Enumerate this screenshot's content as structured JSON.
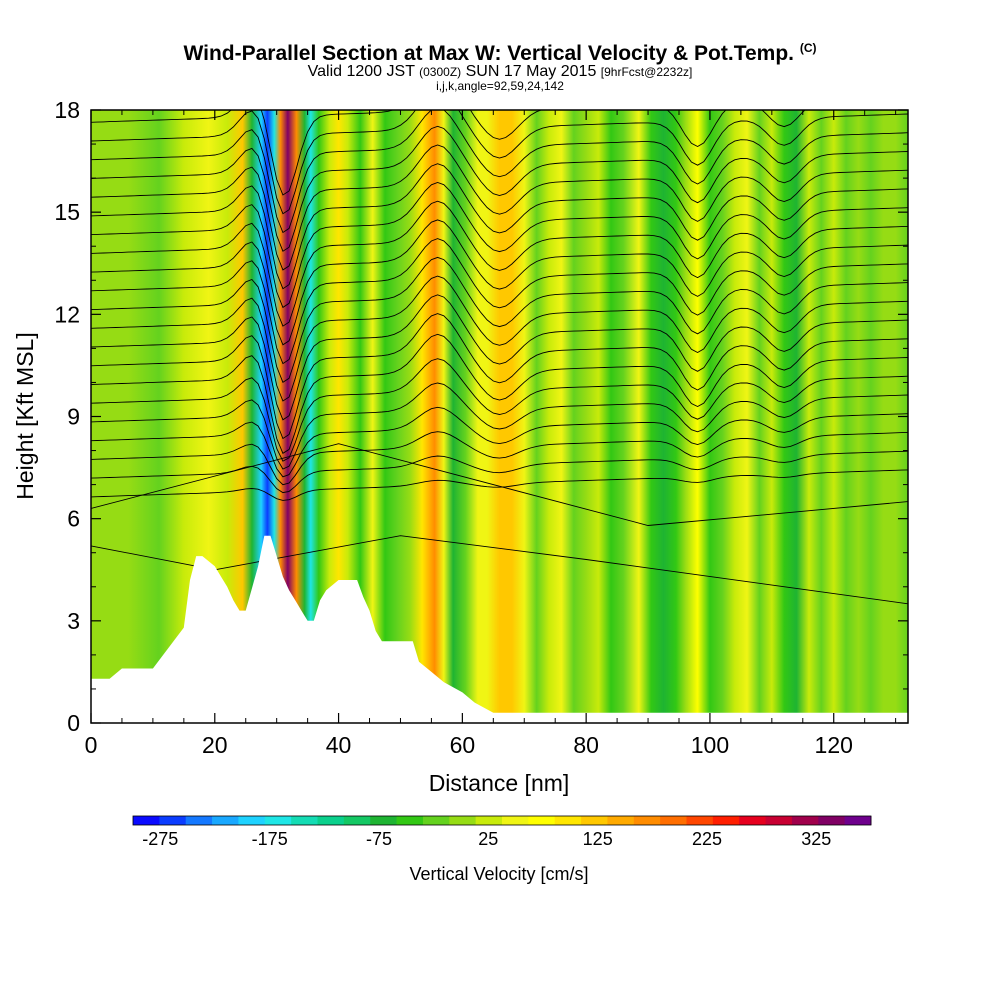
{
  "header": {
    "title": "Wind-Parallel Section at Max W: Vertical Velocity & Pot.Temp.",
    "copyright": "(C)",
    "valid_a": "Valid 1200 JST",
    "valid_z": "(0300Z)",
    "valid_b": "SUN 17 May 2015",
    "forecast": "[9hrFcst@2232z]",
    "indices": "i,j,k,angle=92,59,24,142"
  },
  "chart_data": {
    "type": "heatmap",
    "title": "Wind-Parallel Section at Max W: Vertical Velocity & Pot.Temp.",
    "xlabel": "Distance [nm]",
    "ylabel": "Height [Kft MSL]",
    "xlim": [
      0,
      132
    ],
    "ylim": [
      0,
      18
    ],
    "x_ticks": [
      0,
      20,
      40,
      60,
      80,
      100,
      120
    ],
    "y_ticks": [
      0,
      3,
      6,
      9,
      12,
      15,
      18
    ],
    "colorbar": {
      "label": "Vertical Velocity [cm/s]",
      "range": [
        -300,
        375
      ],
      "tick_values": [
        -275,
        -175,
        -75,
        25,
        125,
        225,
        325
      ],
      "tick_labels": [
        "-275",
        "-175",
        "-75",
        "25",
        "125",
        "225",
        "325"
      ],
      "colors": [
        "#0a0aff",
        "#0a3cff",
        "#1478ff",
        "#19a8ff",
        "#1ed2ff",
        "#1ee6e6",
        "#14dcb4",
        "#0ad08c",
        "#14c864",
        "#1eb432",
        "#32c814",
        "#64d21e",
        "#96dc14",
        "#c8eb0a",
        "#f0f514",
        "#ffff00",
        "#ffe600",
        "#ffc800",
        "#ffaa00",
        "#ff8c00",
        "#ff6e00",
        "#ff4600",
        "#ff1e00",
        "#e6001e",
        "#c80032",
        "#a0004b",
        "#800064",
        "#6e008c"
      ]
    },
    "terrain_profile": {
      "x": [
        0,
        3,
        5,
        10,
        15,
        16,
        17,
        18,
        20,
        21,
        22,
        23,
        24,
        25,
        27,
        28,
        29,
        30,
        31,
        32,
        33,
        34,
        35,
        36,
        37,
        38,
        40,
        43,
        44,
        45,
        46,
        47,
        50,
        52,
        53,
        55,
        57,
        60,
        62,
        65,
        70,
        80,
        90,
        100,
        110,
        120,
        132
      ],
      "height": [
        1.3,
        1.3,
        1.6,
        1.6,
        2.8,
        4.2,
        4.9,
        4.9,
        4.6,
        4.3,
        4.0,
        3.6,
        3.3,
        3.3,
        4.6,
        5.5,
        5.5,
        4.9,
        4.3,
        3.9,
        3.6,
        3.3,
        3.0,
        3.0,
        3.6,
        3.9,
        4.2,
        4.2,
        3.7,
        3.3,
        2.7,
        2.4,
        2.4,
        2.4,
        1.8,
        1.5,
        1.2,
        0.9,
        0.6,
        0.3,
        0.3,
        0.3,
        0.3,
        0.3,
        0.3,
        0.3,
        0.3
      ]
    },
    "vertical_velocity_columns": [
      {
        "x": 2,
        "w": 10
      },
      {
        "x": 6,
        "w": 0
      },
      {
        "x": 11,
        "w": -20
      },
      {
        "x": 15,
        "w": 20
      },
      {
        "x": 19,
        "w": 60
      },
      {
        "x": 22,
        "w": 35
      },
      {
        "x": 24.5,
        "w": 130
      },
      {
        "x": 26,
        "w": -60
      },
      {
        "x": 27.5,
        "w": -200
      },
      {
        "x": 28.5,
        "w": -275
      },
      {
        "x": 29.6,
        "w": -160
      },
      {
        "x": 30.6,
        "w": 160
      },
      {
        "x": 31.8,
        "w": 330
      },
      {
        "x": 33.2,
        "w": 180
      },
      {
        "x": 34.5,
        "w": -60
      },
      {
        "x": 35.5,
        "w": -175
      },
      {
        "x": 36.8,
        "w": -50
      },
      {
        "x": 38.5,
        "w": 30
      },
      {
        "x": 40,
        "w": 90
      },
      {
        "x": 41.5,
        "w": 20
      },
      {
        "x": 43.5,
        "w": -50
      },
      {
        "x": 45.5,
        "w": 40
      },
      {
        "x": 47.5,
        "w": -40
      },
      {
        "x": 49.5,
        "w": -20
      },
      {
        "x": 51.5,
        "w": 10
      },
      {
        "x": 53.5,
        "w": 90
      },
      {
        "x": 55.5,
        "w": 160
      },
      {
        "x": 57,
        "w": 60
      },
      {
        "x": 58.5,
        "w": -60
      },
      {
        "x": 60.5,
        "w": -25
      },
      {
        "x": 62.5,
        "w": 40
      },
      {
        "x": 64,
        "w": 40
      },
      {
        "x": 66,
        "w": 110
      },
      {
        "x": 68,
        "w": 130
      },
      {
        "x": 70,
        "w": 40
      },
      {
        "x": 72,
        "w": -30
      },
      {
        "x": 74,
        "w": 20
      },
      {
        "x": 76,
        "w": 40
      },
      {
        "x": 78,
        "w": -20
      },
      {
        "x": 80,
        "w": 10
      },
      {
        "x": 82,
        "w": 30
      },
      {
        "x": 84,
        "w": -50
      },
      {
        "x": 86,
        "w": -20
      },
      {
        "x": 88.5,
        "w": 40
      },
      {
        "x": 90.5,
        "w": -40
      },
      {
        "x": 92.5,
        "w": -70
      },
      {
        "x": 94.5,
        "w": -40
      },
      {
        "x": 96,
        "w": 0
      },
      {
        "x": 98,
        "w": 70
      },
      {
        "x": 100,
        "w": -40
      },
      {
        "x": 102,
        "w": -20
      },
      {
        "x": 104,
        "w": 30
      },
      {
        "x": 106,
        "w": 40
      },
      {
        "x": 108,
        "w": -20
      },
      {
        "x": 110,
        "w": 30
      },
      {
        "x": 112,
        "w": -50
      },
      {
        "x": 114,
        "w": -70
      },
      {
        "x": 116,
        "w": 20
      },
      {
        "x": 118,
        "w": -30
      },
      {
        "x": 120,
        "w": 30
      },
      {
        "x": 122,
        "w": -30
      },
      {
        "x": 124,
        "w": 10
      },
      {
        "x": 126,
        "w": -20
      },
      {
        "x": 128,
        "w": 0
      },
      {
        "x": 130,
        "w": 10
      },
      {
        "x": 132,
        "w": -20
      }
    ]
  }
}
